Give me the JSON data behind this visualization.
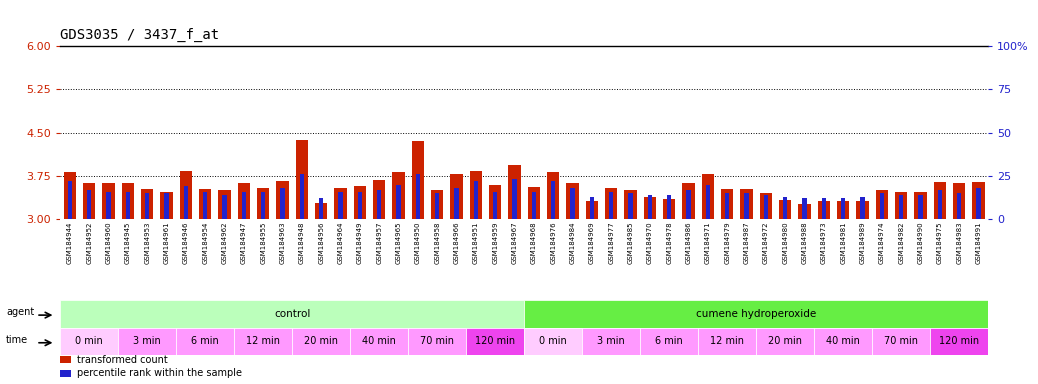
{
  "title": "GDS3035 / 3437_f_at",
  "left_ylim": [
    3,
    6
  ],
  "left_yticks": [
    3,
    3.75,
    4.5,
    5.25,
    6
  ],
  "right_ylim": [
    0,
    100
  ],
  "right_yticks": [
    0,
    25,
    50,
    75,
    100
  ],
  "right_yticklabels": [
    "0",
    "25",
    "50",
    "75",
    "100%"
  ],
  "bar_color": "#cc2200",
  "percentile_color": "#2222cc",
  "sample_ids": [
    "GSM184944",
    "GSM184952",
    "GSM184960",
    "GSM184945",
    "GSM184953",
    "GSM184961",
    "GSM184946",
    "GSM184954",
    "GSM184962",
    "GSM184947",
    "GSM184955",
    "GSM184963",
    "GSM184948",
    "GSM184956",
    "GSM184964",
    "GSM184949",
    "GSM184957",
    "GSM184965",
    "GSM184950",
    "GSM184958",
    "GSM184966",
    "GSM184951",
    "GSM184959",
    "GSM184967",
    "GSM184968",
    "GSM184976",
    "GSM184984",
    "GSM184969",
    "GSM184977",
    "GSM184985",
    "GSM184970",
    "GSM184978",
    "GSM184986",
    "GSM184971",
    "GSM184979",
    "GSM184987",
    "GSM184972",
    "GSM184980",
    "GSM184988",
    "GSM184973",
    "GSM184981",
    "GSM184989",
    "GSM184974",
    "GSM184982",
    "GSM184990",
    "GSM184975",
    "GSM184983",
    "GSM184991"
  ],
  "transformed_counts": [
    3.82,
    3.62,
    3.62,
    3.62,
    3.52,
    3.47,
    3.83,
    3.53,
    3.51,
    3.62,
    3.55,
    3.67,
    4.37,
    3.28,
    3.55,
    3.58,
    3.68,
    3.82,
    4.35,
    3.51,
    3.79,
    3.83,
    3.59,
    3.94,
    3.56,
    3.82,
    3.62,
    3.32,
    3.55,
    3.51,
    3.38,
    3.35,
    3.63,
    3.79,
    3.53,
    3.53,
    3.45,
    3.33,
    3.27,
    3.32,
    3.32,
    3.32,
    3.51,
    3.47,
    3.47,
    3.65,
    3.62,
    3.65
  ],
  "percentile_ranks": [
    22,
    17,
    16,
    16,
    15,
    15,
    19,
    16,
    14,
    16,
    16,
    18,
    26,
    12,
    16,
    16,
    17,
    20,
    26,
    15,
    18,
    22,
    16,
    23,
    16,
    22,
    18,
    13,
    16,
    15,
    14,
    14,
    17,
    20,
    15,
    15,
    14,
    13,
    12,
    12,
    12,
    13,
    15,
    14,
    14,
    17,
    15,
    18
  ],
  "agent_groups": [
    {
      "label": "control",
      "start": 0,
      "end": 24,
      "color": "#bbffbb"
    },
    {
      "label": "cumene hydroperoxide",
      "start": 24,
      "end": 48,
      "color": "#66ee44"
    }
  ],
  "time_groups": [
    {
      "label": "0 min",
      "start": 0,
      "end": 3,
      "color": "#ffccff"
    },
    {
      "label": "3 min",
      "start": 3,
      "end": 6,
      "color": "#ff99ff"
    },
    {
      "label": "6 min",
      "start": 6,
      "end": 9,
      "color": "#ff99ff"
    },
    {
      "label": "12 min",
      "start": 9,
      "end": 12,
      "color": "#ff99ff"
    },
    {
      "label": "20 min",
      "start": 12,
      "end": 15,
      "color": "#ff99ff"
    },
    {
      "label": "40 min",
      "start": 15,
      "end": 18,
      "color": "#ff99ff"
    },
    {
      "label": "70 min",
      "start": 18,
      "end": 21,
      "color": "#ff99ff"
    },
    {
      "label": "120 min",
      "start": 21,
      "end": 24,
      "color": "#ee44ee"
    },
    {
      "label": "0 min",
      "start": 24,
      "end": 27,
      "color": "#ffccff"
    },
    {
      "label": "3 min",
      "start": 27,
      "end": 30,
      "color": "#ff99ff"
    },
    {
      "label": "6 min",
      "start": 30,
      "end": 33,
      "color": "#ff99ff"
    },
    {
      "label": "12 min",
      "start": 33,
      "end": 36,
      "color": "#ff99ff"
    },
    {
      "label": "20 min",
      "start": 36,
      "end": 39,
      "color": "#ff99ff"
    },
    {
      "label": "40 min",
      "start": 39,
      "end": 42,
      "color": "#ff99ff"
    },
    {
      "label": "70 min",
      "start": 42,
      "end": 45,
      "color": "#ff99ff"
    },
    {
      "label": "120 min",
      "start": 45,
      "end": 48,
      "color": "#ee44ee"
    }
  ],
  "legend_items": [
    {
      "label": "transformed count",
      "color": "#cc2200"
    },
    {
      "label": "percentile rank within the sample",
      "color": "#2222cc"
    }
  ],
  "bg_color": "white",
  "title_color": "black",
  "left_axis_color": "#cc2200",
  "right_axis_color": "#2222cc",
  "label_bg_color": "#cccccc",
  "label_border_color": "#999999"
}
